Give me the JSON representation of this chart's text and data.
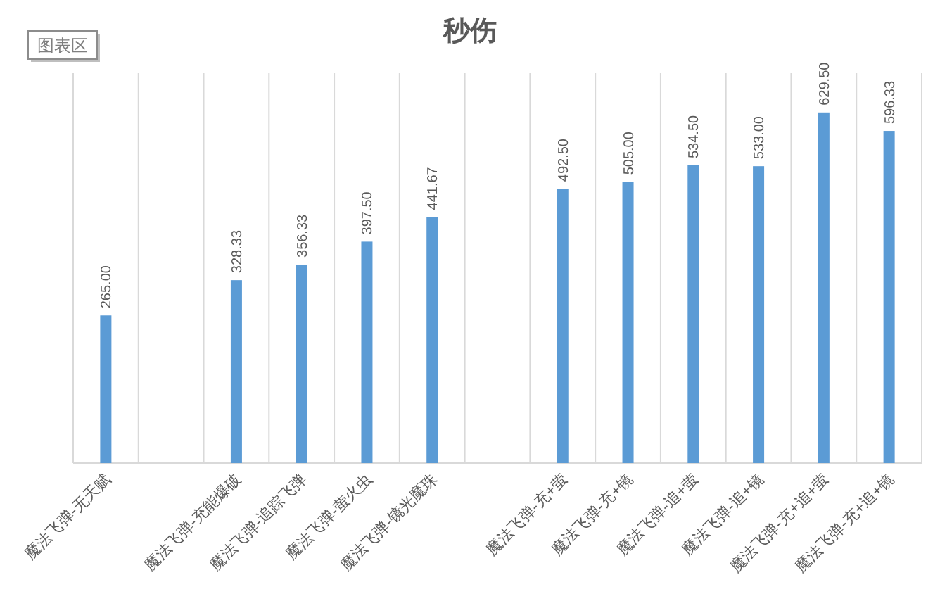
{
  "chart_data": {
    "type": "bar",
    "title": "秒伤",
    "annotations": [
      "图表区"
    ],
    "categories": [
      "魔法飞弹-无天赋",
      null,
      "魔法飞弹-充能爆破",
      "魔法飞弹-追踪飞弹",
      "魔法飞弹-萤火虫",
      "魔法飞弹-镜光魔珠",
      null,
      "魔法飞弹-充+萤",
      "魔法飞弹-充+镜",
      "魔法飞弹-追+萤",
      "魔法飞弹-追+镜",
      "魔法飞弹-充+追+萤",
      "魔法飞弹-充+追+镜"
    ],
    "values": [
      265.0,
      null,
      328.33,
      356.33,
      397.5,
      441.67,
      null,
      492.5,
      505.0,
      534.5,
      533.0,
      629.5,
      596.33
    ],
    "value_labels": [
      "265.00",
      null,
      "328.33",
      "356.33",
      "397.50",
      "441.67",
      null,
      "492.50",
      "505.00",
      "534.50",
      "533.00",
      "629.50",
      "596.33"
    ],
    "color": "#5b9bd5",
    "grid": "x"
  }
}
